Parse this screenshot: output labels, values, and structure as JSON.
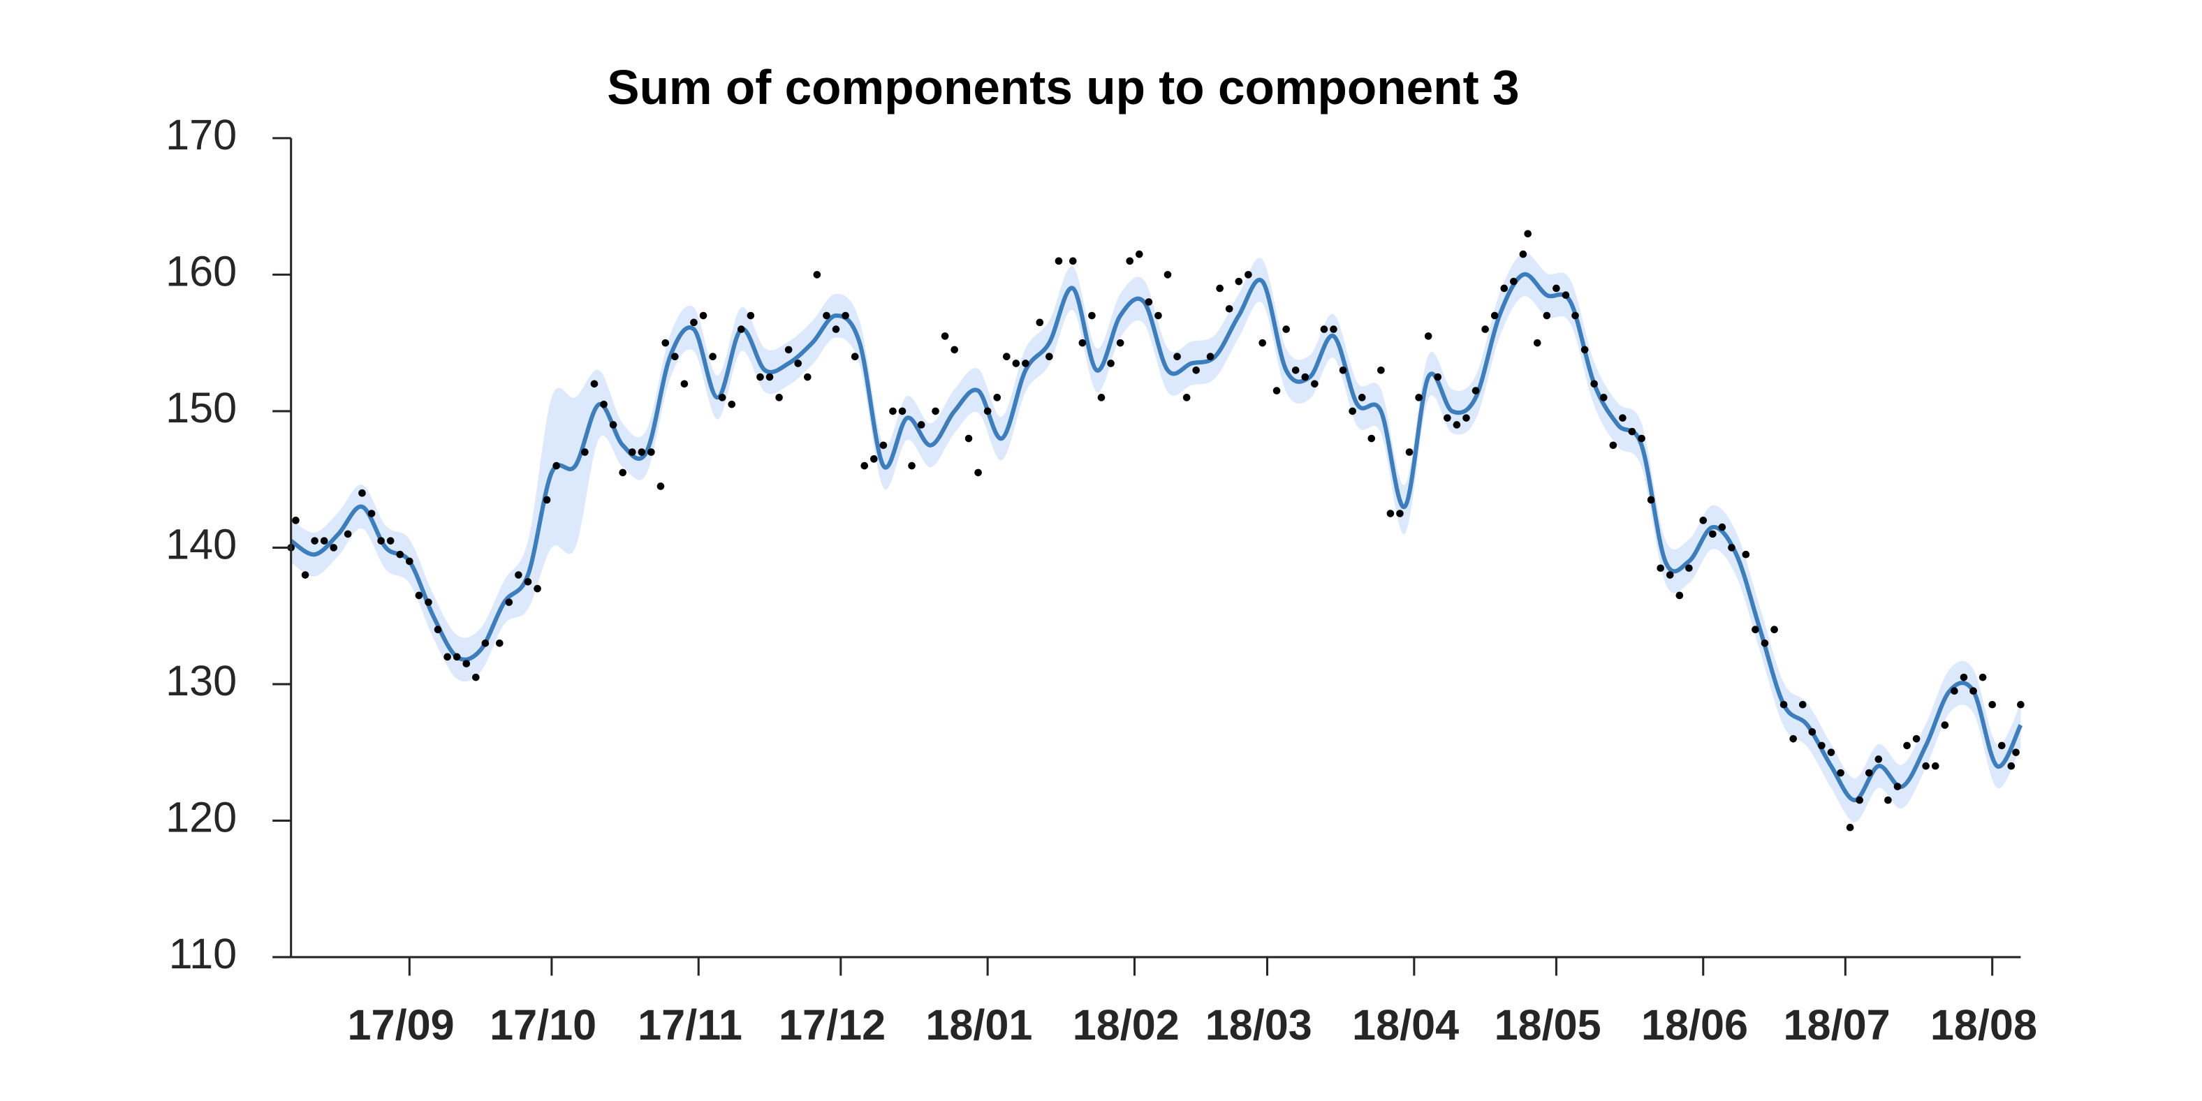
{
  "chart_data": {
    "type": "line",
    "title": "Sum of components up to component 3",
    "xlim": [
      0,
      365
    ],
    "ylim": [
      110,
      170
    ],
    "yticks": [
      110,
      120,
      130,
      140,
      150,
      160,
      170
    ],
    "xticks": [
      {
        "value": 25,
        "label": "17/09"
      },
      {
        "value": 55,
        "label": "17/10"
      },
      {
        "value": 86,
        "label": "17/11"
      },
      {
        "value": 116,
        "label": "17/12"
      },
      {
        "value": 147,
        "label": "18/01"
      },
      {
        "value": 178,
        "label": "18/02"
      },
      {
        "value": 206,
        "label": "18/03"
      },
      {
        "value": 237,
        "label": "18/04"
      },
      {
        "value": 267,
        "label": "18/05"
      },
      {
        "value": 298,
        "label": "18/06"
      },
      {
        "value": 328,
        "label": "18/07"
      },
      {
        "value": 359,
        "label": "18/08"
      }
    ],
    "line": {
      "color": "#3b7dbd",
      "band_color": "#dce8fb",
      "x": [
        0,
        5,
        10,
        15,
        20,
        25,
        30,
        35,
        40,
        45,
        50,
        55,
        60,
        65,
        70,
        75,
        80,
        85,
        90,
        95,
        100,
        105,
        110,
        115,
        120,
        125,
        130,
        135,
        140,
        145,
        150,
        155,
        160,
        165,
        170,
        175,
        180,
        185,
        190,
        195,
        200,
        205,
        210,
        215,
        220,
        225,
        230,
        235,
        240,
        245,
        250,
        255,
        260,
        265,
        270,
        275,
        280,
        285,
        290,
        295,
        300,
        305,
        310,
        315,
        320,
        325,
        330,
        335,
        340,
        345,
        350,
        355,
        360,
        365
      ],
      "values": [
        140.5,
        139.5,
        141,
        143,
        140,
        139,
        135,
        132,
        132.5,
        136,
        138,
        145.5,
        146,
        150.5,
        147.5,
        147,
        154,
        156,
        151,
        156,
        153,
        153.5,
        155,
        157,
        155,
        146,
        149.5,
        147.5,
        150,
        151.5,
        148,
        153,
        155,
        159,
        153,
        157,
        158,
        153,
        153.5,
        154,
        157,
        159.5,
        153,
        152.5,
        155.5,
        150.5,
        150,
        143,
        152.5,
        150,
        151,
        157,
        160,
        158.5,
        158,
        152,
        149,
        147.5,
        139,
        139,
        141.5,
        139.5,
        134,
        128.5,
        127,
        124,
        121.5,
        124,
        122.5,
        125.5,
        129.5,
        129.5,
        124,
        127
      ],
      "upper": [
        142.1,
        141.1,
        142.6,
        144.6,
        141.6,
        140.6,
        136.6,
        133.6,
        134.1,
        137.6,
        140.5,
        151,
        151,
        153,
        149.1,
        148.6,
        155.6,
        157.6,
        152.6,
        157.6,
        154.6,
        155.1,
        156.6,
        158.6,
        156.6,
        147.6,
        151.1,
        149.1,
        151.6,
        153.1,
        149.6,
        154.6,
        156.6,
        160.6,
        154.6,
        158.6,
        159.6,
        154.6,
        155.1,
        155.6,
        158.6,
        161.1,
        154.6,
        154.1,
        157.1,
        152.1,
        151.6,
        144.6,
        154.1,
        151.6,
        152.6,
        158.6,
        161.6,
        160.1,
        159.6,
        153.6,
        150.6,
        149.1,
        140.6,
        140.6,
        143.1,
        141.1,
        135.6,
        130.1,
        128.6,
        125.6,
        123.1,
        125.6,
        124.1,
        127.1,
        131.1,
        131.1,
        125.6,
        128.6
      ],
      "lower": [
        138.9,
        137.9,
        139.4,
        141.4,
        138.4,
        137.4,
        133.4,
        130.4,
        130.9,
        134.4,
        135.5,
        140,
        140,
        148,
        145.9,
        145.4,
        152.4,
        154.4,
        149.4,
        154.4,
        151.4,
        151.9,
        153.4,
        155.4,
        153.4,
        144.4,
        147.9,
        145.9,
        148.4,
        149.9,
        146.4,
        151.4,
        153.4,
        157.4,
        151.4,
        155.4,
        156.4,
        151.4,
        151.9,
        152.4,
        155.4,
        157.9,
        151.4,
        150.9,
        153.9,
        148.9,
        148.4,
        141,
        150.9,
        148.4,
        149.4,
        155.4,
        158.4,
        156.9,
        156.4,
        150.4,
        147.4,
        145.9,
        137.4,
        137.4,
        139.9,
        137.9,
        132.4,
        126.9,
        125.4,
        122.4,
        119.9,
        122.4,
        120.9,
        123.9,
        127.9,
        127.9,
        122.4,
        125.4
      ]
    },
    "points": {
      "color": "#000000",
      "x": [
        0,
        1,
        3,
        5,
        7,
        9,
        12,
        15,
        17,
        19,
        21,
        23,
        25,
        27,
        29,
        31,
        33,
        35,
        37,
        39,
        41,
        44,
        46,
        48,
        50,
        52,
        54,
        56,
        62,
        64,
        66,
        68,
        70,
        72,
        74,
        76,
        78,
        79,
        81,
        83,
        85,
        87,
        89,
        91,
        93,
        95,
        97,
        99,
        101,
        103,
        105,
        107,
        109,
        111,
        113,
        115,
        117,
        119,
        121,
        123,
        125,
        127,
        129,
        131,
        133,
        136,
        138,
        140,
        143,
        145,
        147,
        149,
        151,
        153,
        155,
        158,
        160,
        162,
        165,
        167,
        169,
        171,
        173,
        175,
        177,
        179,
        181,
        183,
        185,
        187,
        189,
        191,
        194,
        196,
        198,
        200,
        202,
        205,
        208,
        210,
        212,
        214,
        216,
        218,
        220,
        222,
        224,
        226,
        228,
        230,
        232,
        234,
        236,
        238,
        240,
        242,
        244,
        246,
        248,
        250,
        252,
        254,
        256,
        258,
        260,
        261,
        263,
        265,
        267,
        269,
        271,
        273,
        275,
        277,
        279,
        281,
        283,
        285,
        287,
        289,
        291,
        293,
        295,
        298,
        300,
        302,
        304,
        307,
        309,
        311,
        313,
        315,
        317,
        319,
        321,
        323,
        325,
        327,
        329,
        331,
        333,
        335,
        337,
        339,
        341,
        343,
        345,
        347,
        349,
        351,
        353,
        355,
        357,
        359,
        361,
        363,
        364,
        365
      ],
      "values": [
        140,
        142,
        138,
        140.5,
        140.5,
        140,
        141,
        144,
        142.5,
        140.5,
        140.5,
        139.5,
        139,
        136.5,
        136,
        134,
        132,
        132,
        131.5,
        130.5,
        133,
        133,
        136,
        138,
        137.5,
        137,
        143.5,
        146,
        147,
        152,
        150.5,
        149,
        145.5,
        147,
        147,
        147,
        144.5,
        155,
        154,
        152,
        156.5,
        157,
        154,
        151,
        150.5,
        156,
        157,
        152.5,
        152.5,
        151,
        154.5,
        153.5,
        152.5,
        160,
        157,
        156,
        157,
        154,
        146,
        146.5,
        147.5,
        150,
        150,
        146,
        149,
        150,
        155.5,
        154.5,
        148,
        145.5,
        150,
        151,
        154,
        153.5,
        153.5,
        156.5,
        154,
        161,
        161,
        155,
        157,
        151,
        153.5,
        155,
        161,
        161.5,
        158,
        157,
        160,
        154,
        151,
        153,
        154,
        159,
        157.5,
        159.5,
        160,
        155,
        151.5,
        156,
        153,
        152.5,
        152,
        156,
        156,
        153,
        150,
        151,
        148,
        153,
        142.5,
        142.5,
        147,
        151,
        155.5,
        152.5,
        149.5,
        149,
        149.5,
        151.5,
        156,
        157,
        159,
        159.5,
        161.5,
        163,
        155,
        157,
        159,
        158.5,
        157,
        154.5,
        152,
        151,
        147.5,
        149.5,
        148.5,
        148,
        143.5,
        138.5,
        138,
        136.5,
        138.5,
        142,
        141,
        141.5,
        140,
        139.5,
        134,
        133,
        134,
        128.5,
        126,
        128.5,
        126.5,
        125.5,
        125,
        123.5,
        119.5,
        121.5,
        123.5,
        124.5,
        121.5,
        122.5,
        125.5,
        126,
        124,
        124,
        127,
        129.5,
        130.5,
        129.5,
        130.5,
        128.5,
        125.5,
        124,
        125,
        128.5
      ]
    }
  }
}
